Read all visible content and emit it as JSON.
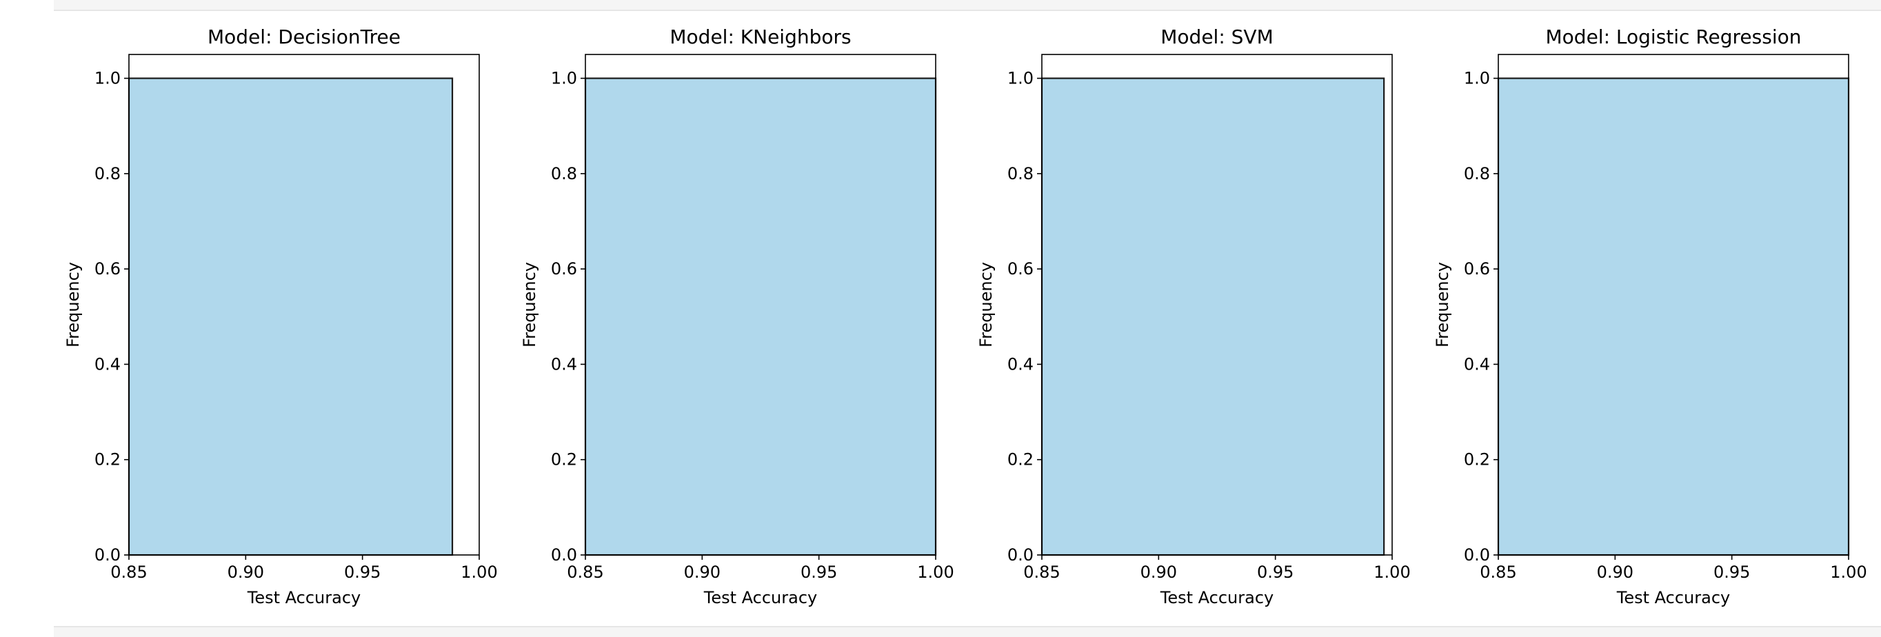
{
  "chart_data": [
    {
      "type": "bar",
      "title": "Model: DecisionTree",
      "xlabel": "Test Accuracy",
      "ylabel": "Frequency",
      "xlim": [
        0.85,
        1.0
      ],
      "ylim": [
        0.0,
        1.05
      ],
      "xticks": [
        "0.85",
        "0.90",
        "0.95",
        "1.00"
      ],
      "yticks": [
        "0.0",
        "0.2",
        "0.4",
        "0.6",
        "0.8",
        "1.0"
      ],
      "bars": [
        {
          "x0": 0.85,
          "x1": 0.9885,
          "value": 1.0
        }
      ],
      "bar_color": "#b0d8ec"
    },
    {
      "type": "bar",
      "title": "Model: KNeighbors",
      "xlabel": "Test Accuracy",
      "ylabel": "Frequency",
      "xlim": [
        0.85,
        1.0
      ],
      "ylim": [
        0.0,
        1.05
      ],
      "xticks": [
        "0.85",
        "0.90",
        "0.95",
        "1.00"
      ],
      "yticks": [
        "0.0",
        "0.2",
        "0.4",
        "0.6",
        "0.8",
        "1.0"
      ],
      "bars": [
        {
          "x0": 0.85,
          "x1": 1.0,
          "value": 1.0
        }
      ],
      "bar_color": "#b0d8ec"
    },
    {
      "type": "bar",
      "title": "Model: SVM",
      "xlabel": "Test Accuracy",
      "ylabel": "Frequency",
      "xlim": [
        0.85,
        1.0
      ],
      "ylim": [
        0.0,
        1.05
      ],
      "xticks": [
        "0.85",
        "0.90",
        "0.95",
        "1.00"
      ],
      "yticks": [
        "0.0",
        "0.2",
        "0.4",
        "0.6",
        "0.8",
        "1.0"
      ],
      "bars": [
        {
          "x0": 0.85,
          "x1": 0.9965,
          "value": 1.0
        }
      ],
      "bar_color": "#b0d8ec"
    },
    {
      "type": "bar",
      "title": "Model: Logistic Regression",
      "xlabel": "Test Accuracy",
      "ylabel": "Frequency",
      "xlim": [
        0.85,
        1.0
      ],
      "ylim": [
        0.0,
        1.05
      ],
      "xticks": [
        "0.85",
        "0.90",
        "0.95",
        "1.00"
      ],
      "yticks": [
        "0.0",
        "0.2",
        "0.4",
        "0.6",
        "0.8",
        "1.0"
      ],
      "bars": [
        {
          "x0": 0.85,
          "x1": 1.0,
          "value": 1.0
        }
      ],
      "bar_color": "#b0d8ec"
    }
  ]
}
